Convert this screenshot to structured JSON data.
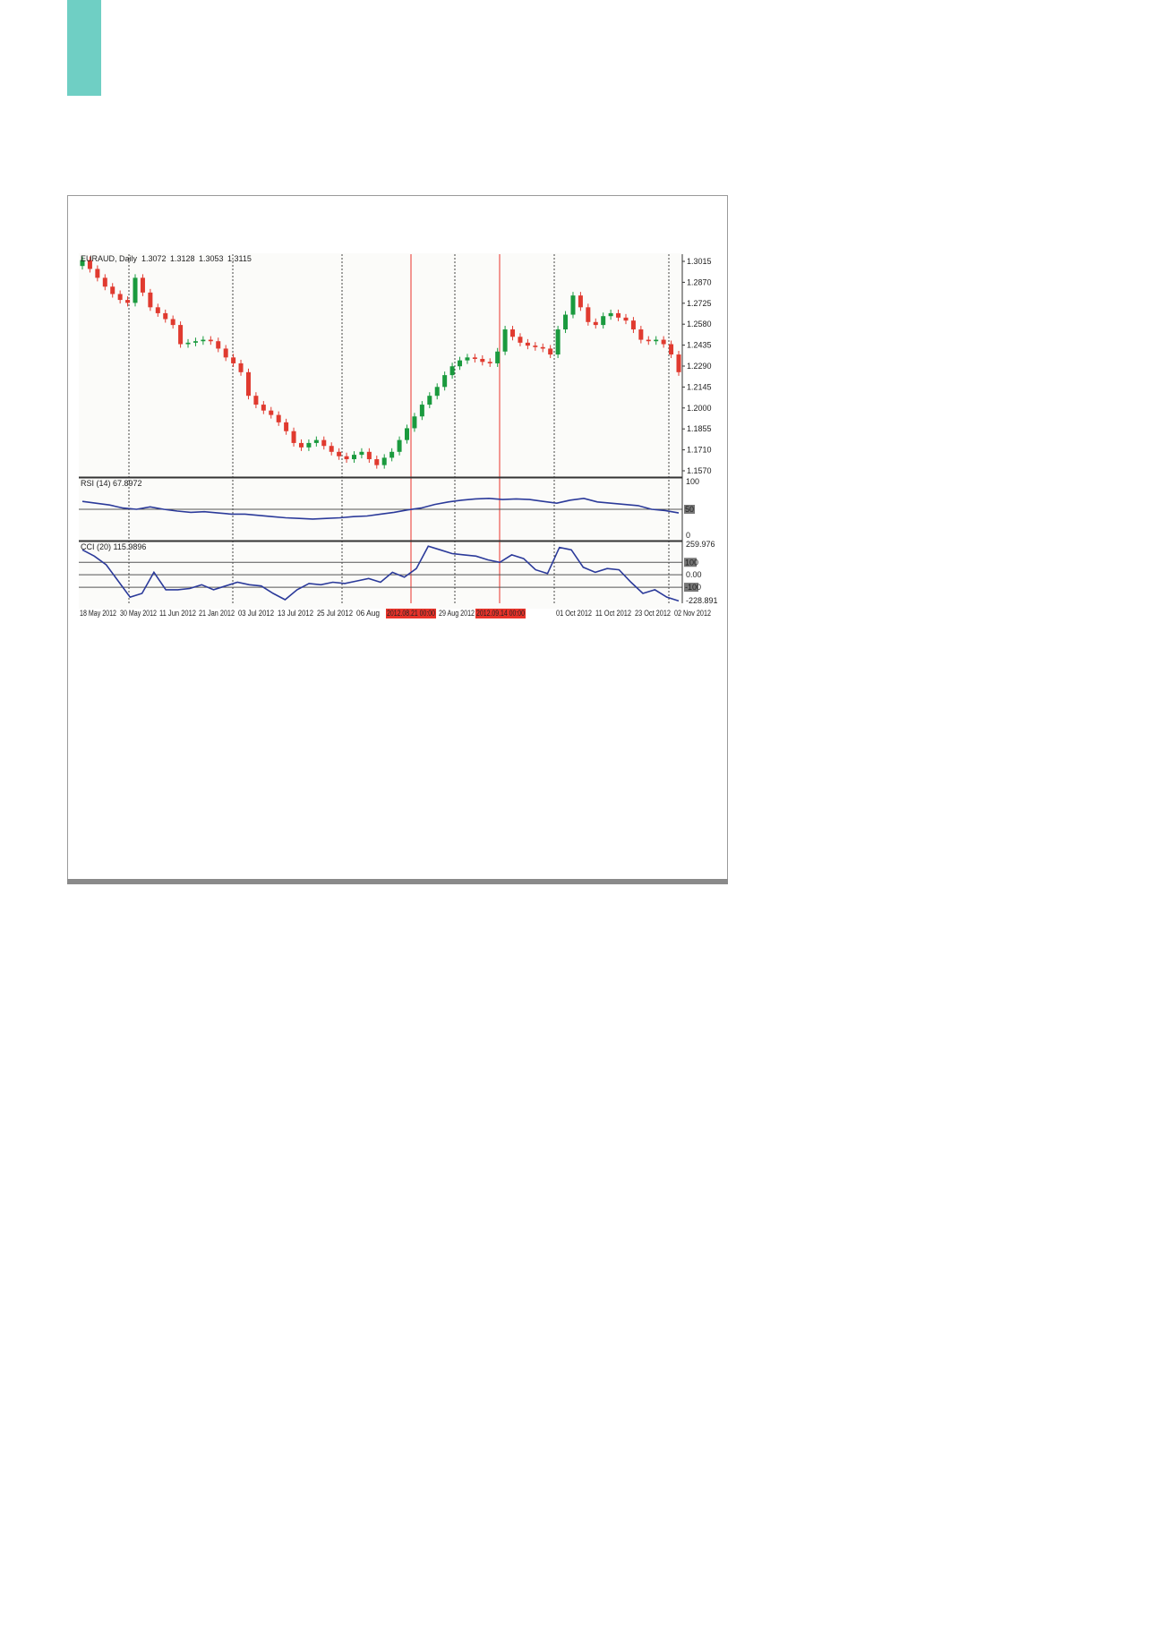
{
  "chart_data": [
    {
      "type": "candlestick",
      "title": "EURAUD, Daily",
      "ohlc_header": [
        "1.3072",
        "1.3128",
        "1.3053",
        "1.3115"
      ],
      "ylim": [
        1.1555,
        1.306
      ],
      "y_ticks": [
        "1.3015",
        "1.2870",
        "1.2725",
        "1.2580",
        "1.2435",
        "1.2290",
        "1.2145",
        "1.2000",
        "1.1855",
        "1.1710",
        "1.1570"
      ],
      "colors": {
        "up": "#1a9a3e",
        "down": "#e03a2f"
      },
      "close": [
        1.302,
        1.296,
        1.29,
        1.284,
        1.279,
        1.275,
        1.273,
        1.29,
        1.28,
        1.27,
        1.266,
        1.262,
        1.258,
        1.245,
        1.246,
        1.247,
        1.248,
        1.247,
        1.242,
        1.236,
        1.232,
        1.226,
        1.21,
        1.204,
        1.2,
        1.197,
        1.192,
        1.186,
        1.178,
        1.175,
        1.178,
        1.18,
        1.176,
        1.172,
        1.169,
        1.167,
        1.17,
        1.172,
        1.167,
        1.163,
        1.168,
        1.172,
        1.18,
        1.188,
        1.196,
        1.204,
        1.21,
        1.216,
        1.224,
        1.23,
        1.234,
        1.236,
        1.235,
        1.233,
        1.232,
        1.24,
        1.255,
        1.25,
        1.246,
        1.244,
        1.243,
        1.242,
        1.238,
        1.255,
        1.265,
        1.278,
        1.27,
        1.26,
        1.258,
        1.264,
        1.266,
        1.263,
        1.261,
        1.255,
        1.248,
        1.247,
        1.248,
        1.245,
        1.238,
        1.226
      ]
    },
    {
      "type": "line",
      "title": "RSI (14) 67.8972",
      "ylim": [
        0,
        100
      ],
      "y_ticks": [
        "100",
        "50",
        "0"
      ],
      "color": "#2b3a9a",
      "values": [
        63,
        60,
        57,
        52,
        50,
        54,
        50,
        47,
        45,
        46,
        44,
        42,
        42,
        40,
        38,
        36,
        35,
        34,
        35,
        36,
        38,
        39,
        42,
        45,
        49,
        52,
        58,
        62,
        65,
        67,
        68,
        66,
        67,
        66,
        63,
        60,
        65,
        68,
        62,
        60,
        58,
        56,
        50,
        48,
        44
      ]
    },
    {
      "type": "line",
      "title": "CCI (20) 115.9896",
      "ylim": [
        -228.891,
        259.976
      ],
      "y_ticks": [
        "259.976",
        "100",
        "0.00",
        "-100",
        "-228.891"
      ],
      "color": "#2b3a9a",
      "values": [
        200,
        150,
        80,
        -50,
        -180,
        -150,
        20,
        -120,
        -120,
        -110,
        -80,
        -120,
        -90,
        -60,
        -80,
        -90,
        -150,
        -200,
        -120,
        -70,
        -80,
        -60,
        -70,
        -50,
        -30,
        -60,
        20,
        -20,
        50,
        230,
        200,
        170,
        160,
        150,
        120,
        100,
        160,
        130,
        40,
        10,
        220,
        200,
        60,
        20,
        50,
        40,
        -60,
        -150,
        -120,
        -180,
        -210
      ]
    }
  ],
  "x_labels": [
    "18 May 2012",
    "30 May 2012",
    "11 Jun 2012",
    "21 Jan 2012",
    "03 Jul 2012",
    "13 Jul 2012",
    "25 Jul 2012",
    "06 Aug",
    "2012.08.21  00:00",
    "29 Aug 2012",
    "2012.09.14  00:00",
    "01 Oct 2012",
    "11 Oct 2012",
    "23 Oct 2012",
    "02 Nov 2012"
  ],
  "highlight_color": "#e8332a"
}
